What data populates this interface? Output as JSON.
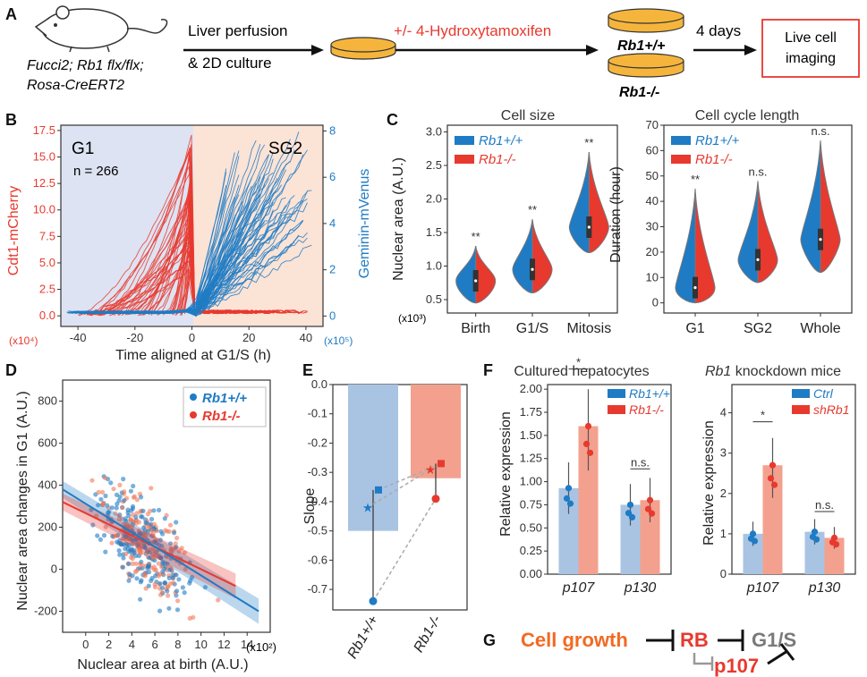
{
  "colors": {
    "blue": "#1f7bc4",
    "red": "#e8392f",
    "blueLight": "#a9c4e3",
    "redLight": "#f3a18e",
    "orange": "#f26a22",
    "grey": "#7a7a7a",
    "g1bg": "#dde3f2",
    "sg2bg": "#fbe3d6",
    "dish": "#f5b53c"
  },
  "panelA": {
    "label": "A",
    "mouse": [
      "Fucci2; Rb1 flx/flx;",
      "Rosa-CreERT2"
    ],
    "step1": [
      "Liver perfusion",
      "& 2D culture"
    ],
    "step2": "+/- 4-Hydroxytamoxifen",
    "wt": "Rb1+/+",
    "ko": "Rb1-/-",
    "step3": "4 days",
    "box": [
      "Live cell",
      "imaging"
    ]
  },
  "panelB": {
    "label": "B",
    "phase1": "G1",
    "n": "n = 266",
    "phase2": "SG2",
    "ylabel_left": "Cdt1-mCherry",
    "ylabel_right": "Geminin-mVenus",
    "xlabel": "Time aligned at G1/S (h)",
    "left_unit": "(x10⁴)",
    "right_unit": "(x10⁵)",
    "xticks": [
      "-40",
      "-20",
      "0",
      "20",
      "40"
    ],
    "yticks_left": [
      "0.0",
      "2.5",
      "5.0",
      "7.5",
      "10.0",
      "12.5",
      "15.0",
      "17.5"
    ],
    "yticks_right": [
      "0",
      "2",
      "4",
      "6",
      "8"
    ]
  },
  "panelC": {
    "label": "C",
    "chart_data": [
      {
        "type": "violin",
        "title": "Cell size",
        "ylabel": "Nuclear area (A.U.)",
        "unit": "(x10³)",
        "categories": [
          "Birth",
          "G1/S",
          "Mitosis"
        ],
        "significance": [
          "**",
          "**",
          "**"
        ],
        "ylim": [
          0.3,
          3.1
        ],
        "yticks": [
          "0.5",
          "1.0",
          "1.5",
          "2.0",
          "2.5",
          "3.0"
        ],
        "legend": [
          "Rb1+/+",
          "Rb1-/-"
        ],
        "medians": [
          0.78,
          0.95,
          1.58
        ],
        "top": [
          1.3,
          1.7,
          2.7
        ],
        "bottom": [
          0.45,
          0.6,
          1.2
        ]
      },
      {
        "type": "violin",
        "title": "Cell cycle length",
        "ylabel": "Duration (hour)",
        "categories": [
          "G1",
          "SG2",
          "Whole"
        ],
        "significance": [
          "**",
          "n.s.",
          "n.s."
        ],
        "ylim": [
          -4,
          70
        ],
        "yticks": [
          "0",
          "10",
          "20",
          "30",
          "40",
          "50",
          "60",
          "70"
        ],
        "legend": [
          "Rb1+/+",
          "Rb1-/-"
        ],
        "medians": [
          6,
          17,
          25
        ],
        "top": [
          45,
          48,
          64
        ],
        "bottom": [
          0,
          8,
          12
        ]
      }
    ]
  },
  "panelD": {
    "label": "D",
    "chart_data": {
      "type": "scatter",
      "xlabel": "Nuclear area at birth (A.U.)",
      "ylabel": "Nuclear area changes in G1 (A.U.)",
      "xunit": "(x10²)",
      "xticks": [
        "0",
        "2",
        "4",
        "6",
        "8",
        "10",
        "12",
        "14"
      ],
      "yticks": [
        "-200",
        "0",
        "200",
        "400",
        "600",
        "800"
      ],
      "legend": [
        "Rb1+/+",
        "Rb1-/-"
      ],
      "fit_wt": [
        [
          -2,
          380
        ],
        [
          15,
          -200
        ]
      ],
      "fit_ko": [
        [
          -2,
          320
        ],
        [
          13,
          -80
        ]
      ]
    }
  },
  "panelE": {
    "label": "E",
    "chart_data": {
      "type": "bar",
      "ylabel": "Slope",
      "categories": [
        "Rb1+/+",
        "Rb1-/-"
      ],
      "values": [
        -0.5,
        -0.32
      ],
      "ylim": [
        -0.77,
        0.0
      ],
      "yticks": [
        "0.0",
        "-0.1",
        "-0.2",
        "-0.3",
        "-0.4",
        "-0.5",
        "-0.6",
        "-0.7"
      ],
      "points_circle": [
        -0.74,
        -0.39
      ],
      "points_square": [
        -0.36,
        -0.27
      ],
      "points_star": [
        -0.42,
        -0.29
      ]
    }
  },
  "panelF": {
    "label": "F",
    "chart_data": [
      {
        "type": "bar",
        "title": "Cultured hepatocytes",
        "ylabel": "Relative expression",
        "categories": [
          "p107",
          "p130"
        ],
        "legend": [
          "Rb1+/+",
          "Rb1-/-"
        ],
        "series": [
          {
            "name": "Rb1+/+",
            "values": [
              0.93,
              0.75
            ]
          },
          {
            "name": "Rb1-/-",
            "values": [
              1.6,
              0.8
            ]
          }
        ],
        "ylim": [
          0,
          2.05
        ],
        "yticks": [
          "0.00",
          "0.25",
          "0.50",
          "0.75",
          "1.00",
          "1.25",
          "1.50",
          "1.75",
          "2.00"
        ],
        "significance": [
          "*",
          "n.s."
        ]
      },
      {
        "type": "bar",
        "title": "knockdown mice",
        "title_italic": "Rb1",
        "ylabel": "Relative expression",
        "categories": [
          "p107",
          "p130"
        ],
        "legend": [
          "Ctrl",
          "shRb1"
        ],
        "series": [
          {
            "name": "Ctrl",
            "values": [
              1.0,
              1.05
            ]
          },
          {
            "name": "shRb1",
            "values": [
              2.7,
              0.9
            ]
          }
        ],
        "ylim": [
          0,
          4.7
        ],
        "yticks": [
          "0",
          "1",
          "2",
          "3",
          "4"
        ],
        "significance": [
          "*",
          "n.s."
        ]
      }
    ]
  },
  "panelG": {
    "label": "G",
    "growth": "Cell growth",
    "rb": "RB",
    "g1s": "G1/S",
    "p107": "p107"
  }
}
